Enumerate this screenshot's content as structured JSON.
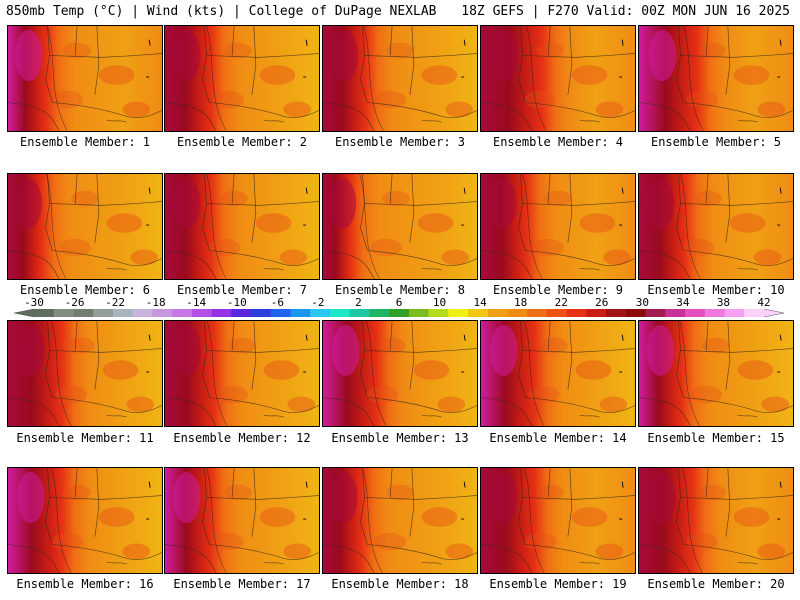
{
  "header": {
    "left": "850mb Temp (°C) | Wind (kts) | College of DuPage NEXLAB",
    "right": "18Z GEFS | F270 Valid: 00Z MON JUN 16 2025"
  },
  "members": [
    {
      "label": "Ensemble Member: 1",
      "hot": 0.95,
      "front": 0.25,
      "cool": 0.35
    },
    {
      "label": "Ensemble Member: 2",
      "hot": 0.85,
      "front": 0.3,
      "cool": 0.15
    },
    {
      "label": "Ensemble Member: 3",
      "hot": 0.8,
      "front": 0.28,
      "cool": 0.2
    },
    {
      "label": "Ensemble Member: 4",
      "hot": 0.85,
      "front": 0.4,
      "cool": 0.35
    },
    {
      "label": "Ensemble Member: 5",
      "hot": 0.95,
      "front": 0.38,
      "cool": 0.4
    },
    {
      "label": "Ensemble Member: 6",
      "hot": 0.75,
      "front": 0.22,
      "cool": 0.2
    },
    {
      "label": "Ensemble Member: 7",
      "hot": 0.9,
      "front": 0.3,
      "cool": 0.2
    },
    {
      "label": "Ensemble Member: 8",
      "hot": 0.8,
      "front": 0.18,
      "cool": 0.1
    },
    {
      "label": "Ensemble Member: 9",
      "hot": 0.8,
      "front": 0.3,
      "cool": 0.35
    },
    {
      "label": "Ensemble Member: 10",
      "hot": 0.85,
      "front": 0.3,
      "cool": 0.35
    },
    {
      "label": "Ensemble Member: 11",
      "hot": 0.85,
      "front": 0.35,
      "cool": 0.3
    },
    {
      "label": "Ensemble Member: 12",
      "hot": 0.9,
      "front": 0.32,
      "cool": 0.3
    },
    {
      "label": "Ensemble Member: 13",
      "hot": 0.98,
      "front": 0.35,
      "cool": 0.3
    },
    {
      "label": "Ensemble Member: 14",
      "hot": 0.98,
      "front": 0.35,
      "cool": 0.3
    },
    {
      "label": "Ensemble Member: 15",
      "hot": 0.98,
      "front": 0.28,
      "cool": 0.25
    },
    {
      "label": "Ensemble Member: 16",
      "hot": 0.95,
      "front": 0.35,
      "cool": 0.3
    },
    {
      "label": "Ensemble Member: 17",
      "hot": 0.98,
      "front": 0.3,
      "cool": 0.25
    },
    {
      "label": "Ensemble Member: 18",
      "hot": 0.85,
      "front": 0.25,
      "cool": 0.25
    },
    {
      "label": "Ensemble Member: 19",
      "hot": 0.9,
      "front": 0.35,
      "cool": 0.4
    },
    {
      "label": "Ensemble Member: 20",
      "hot": 0.85,
      "front": 0.35,
      "cool": 0.35
    }
  ],
  "colorbar": {
    "labels": [
      "-30",
      "-26",
      "-22",
      "-18",
      "-14",
      "-10",
      "-6",
      "-2",
      "2",
      "6",
      "10",
      "14",
      "18",
      "22",
      "26",
      "30",
      "34",
      "38",
      "42"
    ],
    "colors": [
      "#5e6e5e",
      "#848c84",
      "#747c74",
      "#949c9c",
      "#a8b4c0",
      "#c8b4dc",
      "#c896dc",
      "#c878e6",
      "#b450e6",
      "#9632e6",
      "#5a28dc",
      "#2d3cdc",
      "#1e64f0",
      "#1e96f0",
      "#28c8f0",
      "#1ee6c8",
      "#1ec8a0",
      "#1eb464",
      "#32a028",
      "#78be1e",
      "#b4dc1e",
      "#f0f014",
      "#f0c814",
      "#f0a014",
      "#f08c14",
      "#f06e14",
      "#f05014",
      "#e63214",
      "#c81e14",
      "#a01414",
      "#8c0a0a",
      "#a01e50",
      "#c83296",
      "#e650be",
      "#f078dc",
      "#f8a0f0",
      "#fcd2fa"
    ]
  }
}
